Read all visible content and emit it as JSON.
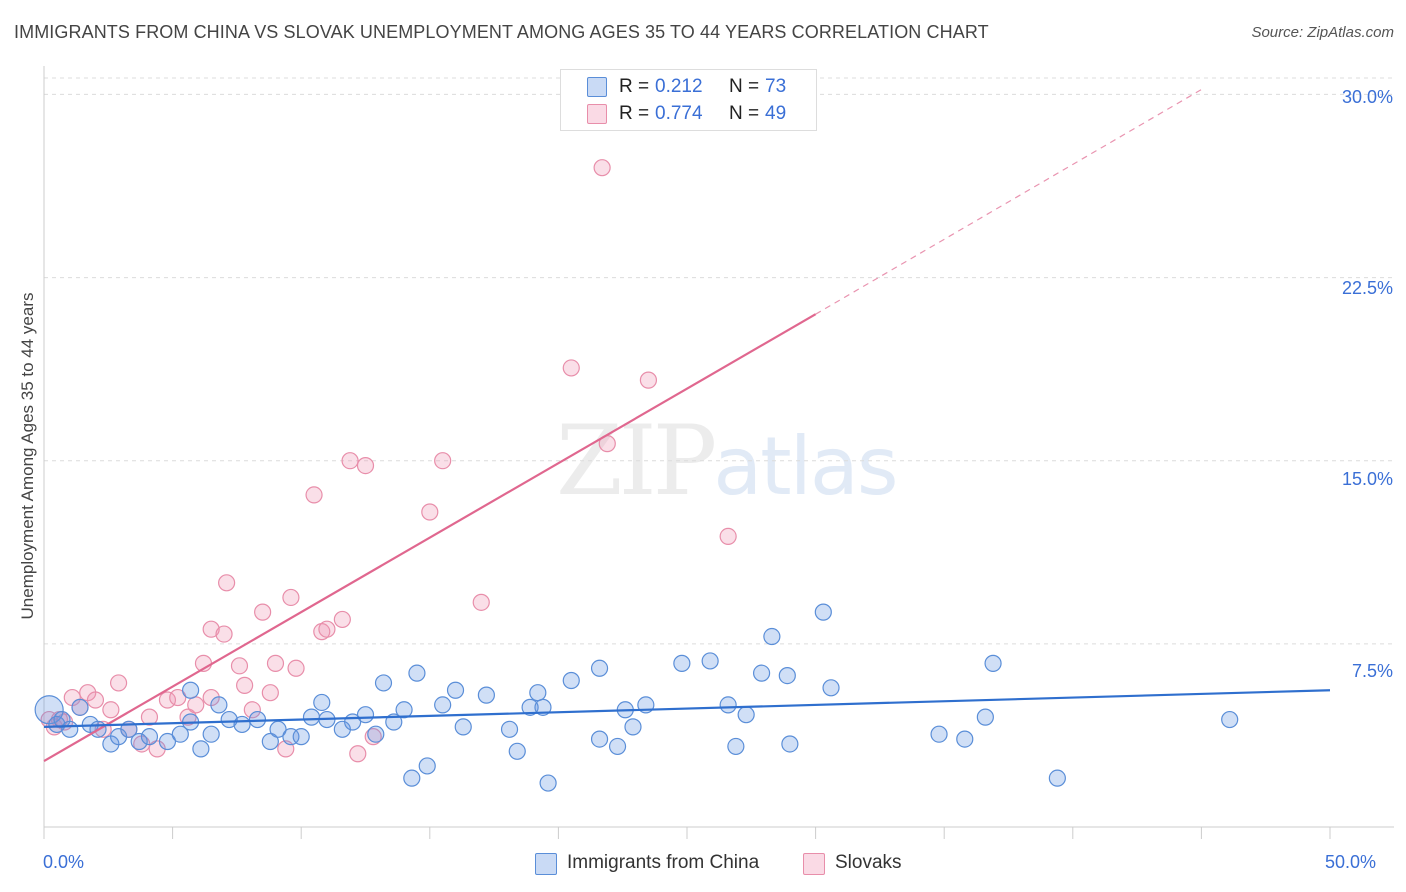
{
  "header": {
    "title": "IMMIGRANTS FROM CHINA VS SLOVAK UNEMPLOYMENT AMONG AGES 35 TO 44 YEARS CORRELATION CHART",
    "source": "Source: ZipAtlas.com"
  },
  "watermark": {
    "zip": "ZIP",
    "atlas": "atlas"
  },
  "legend": {
    "rows": [
      {
        "r_label": "R =",
        "r_value": "0.212",
        "n_label": "N =",
        "n_value": "73"
      },
      {
        "r_label": "R =",
        "r_value": "0.774",
        "n_label": "N =",
        "n_value": "49"
      }
    ]
  },
  "bottom_legend": [
    "Immigrants from China",
    "Slovaks"
  ],
  "colors": {
    "china_fill": "rgba(100,150,225,0.30)",
    "china_stroke": "#5a8ed8",
    "china_line": "#2f6fce",
    "slovak_fill": "rgba(240,150,180,0.30)",
    "slovak_stroke": "#e88eaa",
    "slovak_line": "#e0678f",
    "tick_text": "#3a6fd6",
    "grid": "#dcdcdc"
  },
  "chart_data": {
    "type": "scatter",
    "title": "IMMIGRANTS FROM CHINA VS SLOVAK UNEMPLOYMENT AMONG AGES 35 TO 44 YEARS CORRELATION CHART",
    "xlabel": "",
    "ylabel": "Unemployment Among Ages 35 to 44 years",
    "xlim": [
      0,
      50
    ],
    "ylim": [
      0,
      31
    ],
    "x_tick_labels": [
      "0.0%",
      "50.0%"
    ],
    "y_ticks": [
      7.5,
      15.0,
      22.5,
      30.0
    ],
    "y_tick_labels": [
      "7.5%",
      "15.0%",
      "22.5%",
      "30.0%"
    ],
    "series": [
      {
        "name": "Immigrants from China",
        "r": 0.212,
        "n": 73,
        "trend": {
          "x": [
            0,
            50
          ],
          "y": [
            4.1,
            5.6
          ]
        },
        "points": [
          [
            0.2,
            4.8
          ],
          [
            0.5,
            4.2
          ],
          [
            0.7,
            4.4
          ],
          [
            1.0,
            4.0
          ],
          [
            1.4,
            4.9
          ],
          [
            1.8,
            4.2
          ],
          [
            2.1,
            4.0
          ],
          [
            2.6,
            3.4
          ],
          [
            2.9,
            3.7
          ],
          [
            3.3,
            4.0
          ],
          [
            3.7,
            3.5
          ],
          [
            4.1,
            3.7
          ],
          [
            4.8,
            3.5
          ],
          [
            5.3,
            3.8
          ],
          [
            5.7,
            5.6
          ],
          [
            5.7,
            4.3
          ],
          [
            6.1,
            3.2
          ],
          [
            6.5,
            3.8
          ],
          [
            6.8,
            5.0
          ],
          [
            7.2,
            4.4
          ],
          [
            7.7,
            4.2
          ],
          [
            8.3,
            4.4
          ],
          [
            8.8,
            3.5
          ],
          [
            9.1,
            4.0
          ],
          [
            9.6,
            3.7
          ],
          [
            10.0,
            3.7
          ],
          [
            10.4,
            4.5
          ],
          [
            10.8,
            5.1
          ],
          [
            11.0,
            4.4
          ],
          [
            11.6,
            4.0
          ],
          [
            12.0,
            4.3
          ],
          [
            12.5,
            4.6
          ],
          [
            12.9,
            3.8
          ],
          [
            13.2,
            5.9
          ],
          [
            13.6,
            4.3
          ],
          [
            14.0,
            4.8
          ],
          [
            14.5,
            6.3
          ],
          [
            14.9,
            2.5
          ],
          [
            14.3,
            2.0
          ],
          [
            15.5,
            5.0
          ],
          [
            16.3,
            4.1
          ],
          [
            16.0,
            5.6
          ],
          [
            17.2,
            5.4
          ],
          [
            18.1,
            4.0
          ],
          [
            18.4,
            3.1
          ],
          [
            18.9,
            4.9
          ],
          [
            19.2,
            5.5
          ],
          [
            19.6,
            1.8
          ],
          [
            19.4,
            4.9
          ],
          [
            20.5,
            6.0
          ],
          [
            21.6,
            6.5
          ],
          [
            21.6,
            3.6
          ],
          [
            22.3,
            3.3
          ],
          [
            22.6,
            4.8
          ],
          [
            22.9,
            4.1
          ],
          [
            23.4,
            5.0
          ],
          [
            24.8,
            6.7
          ],
          [
            25.9,
            6.8
          ],
          [
            26.6,
            5.0
          ],
          [
            26.9,
            3.3
          ],
          [
            27.3,
            4.6
          ],
          [
            27.9,
            6.3
          ],
          [
            28.3,
            7.8
          ],
          [
            28.9,
            6.2
          ],
          [
            29.0,
            3.4
          ],
          [
            30.3,
            8.8
          ],
          [
            30.6,
            5.7
          ],
          [
            34.8,
            3.8
          ],
          [
            35.8,
            3.6
          ],
          [
            36.6,
            4.5
          ],
          [
            36.9,
            6.7
          ],
          [
            39.4,
            2.0
          ],
          [
            46.1,
            4.4
          ]
        ]
      },
      {
        "name": "Slovaks",
        "r": 0.774,
        "n": 49,
        "trend": {
          "x": [
            0,
            30
          ],
          "y": [
            2.7,
            21.0
          ]
        },
        "trend_dashed": {
          "x": [
            30,
            45
          ],
          "y": [
            21.0,
            30.2
          ]
        },
        "points": [
          [
            0.2,
            4.4
          ],
          [
            0.4,
            4.1
          ],
          [
            0.6,
            4.4
          ],
          [
            0.8,
            4.3
          ],
          [
            1.1,
            5.3
          ],
          [
            1.4,
            4.9
          ],
          [
            1.7,
            5.5
          ],
          [
            2.0,
            5.2
          ],
          [
            2.3,
            4.0
          ],
          [
            2.6,
            4.8
          ],
          [
            2.9,
            5.9
          ],
          [
            3.3,
            4.0
          ],
          [
            3.8,
            3.4
          ],
          [
            4.1,
            4.5
          ],
          [
            4.4,
            3.2
          ],
          [
            4.8,
            5.2
          ],
          [
            5.2,
            5.3
          ],
          [
            5.6,
            4.5
          ],
          [
            5.9,
            5.0
          ],
          [
            6.2,
            6.7
          ],
          [
            6.5,
            5.3
          ],
          [
            6.5,
            8.1
          ],
          [
            7.0,
            7.9
          ],
          [
            7.1,
            10.0
          ],
          [
            7.6,
            6.6
          ],
          [
            7.8,
            5.8
          ],
          [
            8.1,
            4.8
          ],
          [
            8.5,
            8.8
          ],
          [
            8.8,
            5.5
          ],
          [
            9.0,
            6.7
          ],
          [
            9.4,
            3.2
          ],
          [
            9.6,
            9.4
          ],
          [
            9.8,
            6.5
          ],
          [
            10.5,
            13.6
          ],
          [
            10.8,
            8.0
          ],
          [
            11.0,
            8.1
          ],
          [
            11.6,
            8.5
          ],
          [
            11.9,
            15.0
          ],
          [
            12.2,
            3.0
          ],
          [
            12.5,
            14.8
          ],
          [
            12.8,
            3.7
          ],
          [
            15.0,
            12.9
          ],
          [
            15.5,
            15.0
          ],
          [
            17.0,
            9.2
          ],
          [
            20.5,
            18.8
          ],
          [
            21.7,
            27.0
          ],
          [
            21.9,
            15.7
          ],
          [
            23.5,
            18.3
          ],
          [
            26.6,
            11.9
          ]
        ]
      }
    ]
  }
}
